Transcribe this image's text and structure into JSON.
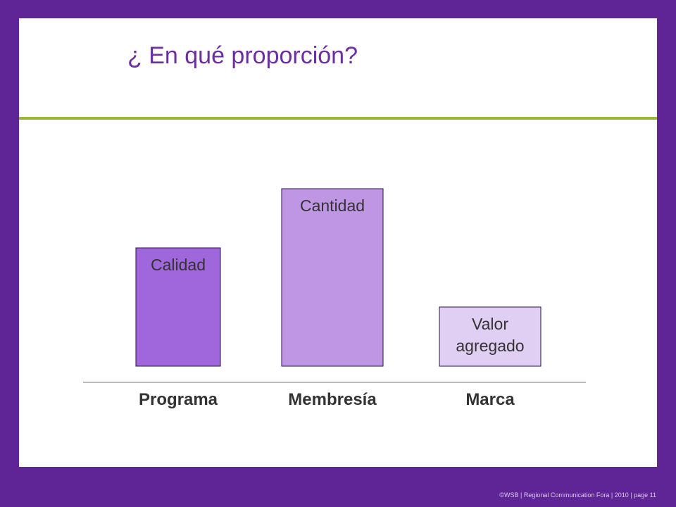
{
  "slide": {
    "title": "¿ En qué proporción?",
    "footer": "©WSB  | Regional Communication Fora | 2010 |  page 11"
  },
  "colors": {
    "frame": "#5f2597",
    "title": "#6b2fa0",
    "divider": "#9bb53a",
    "bar_programa": "#a066dc",
    "bar_membresia": "#bf96e4",
    "bar_marca": "#e0cff3"
  },
  "chart_data": {
    "type": "bar",
    "categories": [
      "Programa",
      "Membresía",
      "Marca"
    ],
    "values": [
      2,
      3,
      1
    ],
    "bar_labels": [
      [
        "Calidad"
      ],
      [
        "Cantidad"
      ],
      [
        "Valor",
        "agregado"
      ]
    ],
    "title": "",
    "xlabel": "",
    "ylabel": "",
    "ylim": [
      0,
      3.3
    ],
    "grid": false
  }
}
